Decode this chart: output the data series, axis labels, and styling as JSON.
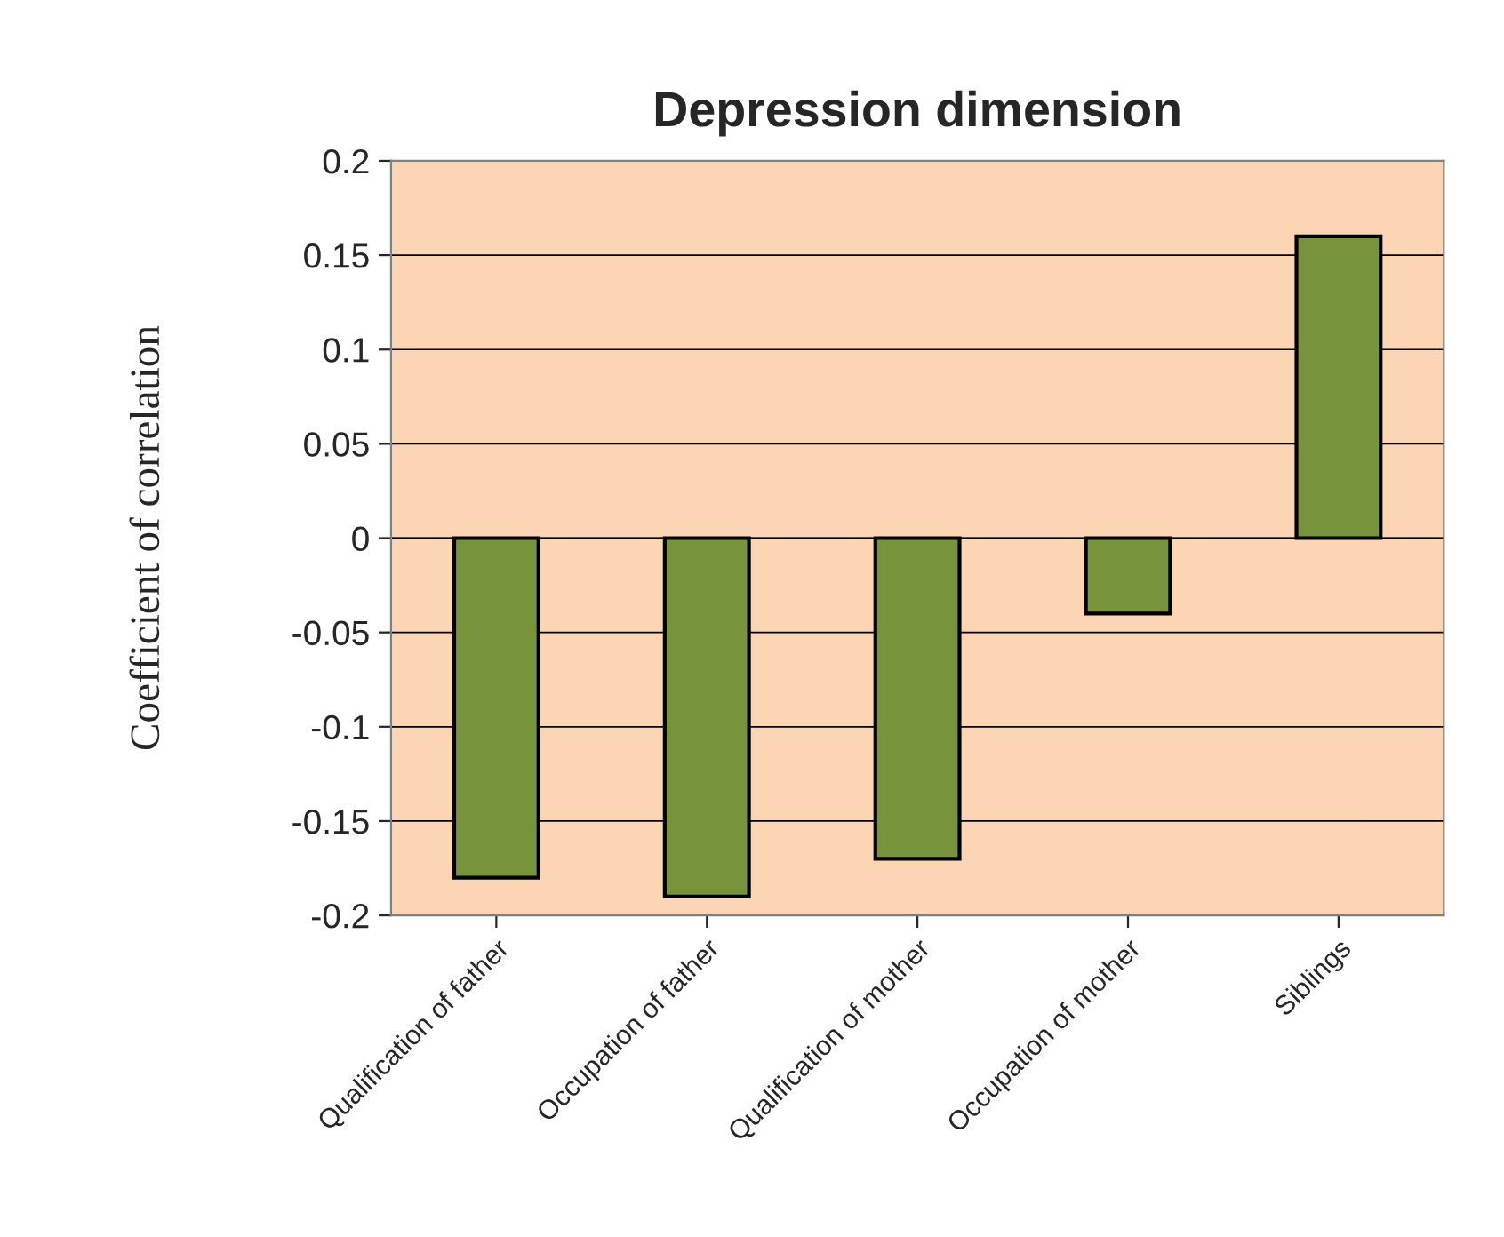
{
  "chart_data": {
    "type": "bar",
    "title": "Depression dimension",
    "ylabel": "Coefficient of correlation",
    "categories": [
      "Qualification of father",
      "Occupation of father",
      "Qualification of mother",
      "Occupation of mother",
      "Siblings"
    ],
    "values": [
      -0.18,
      -0.19,
      -0.17,
      -0.04,
      0.16
    ],
    "color": "#77933c",
    "ylim": [
      -0.2,
      0.2
    ],
    "yticks": [
      -0.2,
      -0.15,
      -0.1,
      -0.05,
      0,
      0.05,
      0.1,
      0.15,
      0.2
    ],
    "grid": "y",
    "legend": false
  }
}
